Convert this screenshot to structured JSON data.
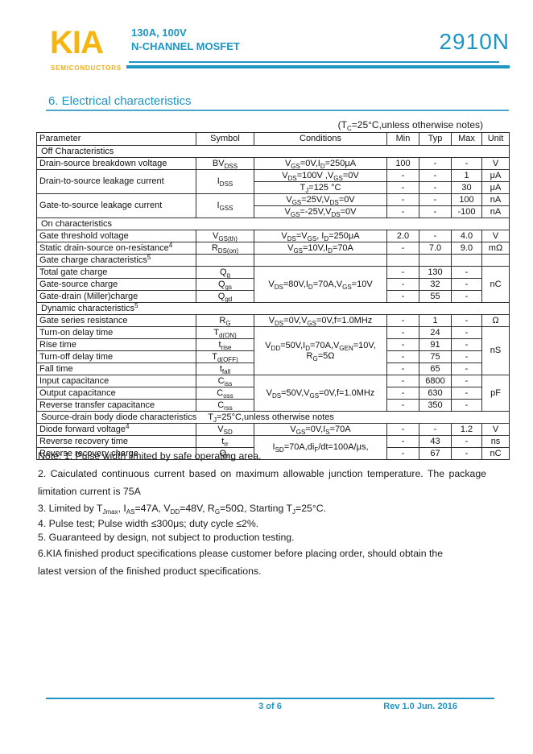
{
  "header": {
    "logo_text": "KIA",
    "logo_sub": "SEMICONDUCTORS",
    "product_line1": "130A, 100V",
    "product_line2": "N-CHANNEL MOSFET",
    "part_number": "2910N",
    "accent_blue": "#1d96c5",
    "logo_yellow": "#f6b40e"
  },
  "section": {
    "title": "6.  Electrical characteristics",
    "condition_note": "(T~C~=25°C,unless otherwise notes)"
  },
  "table": {
    "headers": [
      "Parameter",
      "Symbol",
      "Conditions",
      "Min",
      "Typ",
      "Max",
      "Unit"
    ],
    "rows": [
      {
        "section": "Off Characteristics"
      },
      {
        "parameter": "Drain-source breakdown voltage",
        "symbol": "BV~DSS~",
        "conditions": "V~GS~=0V,I~D~=250μA",
        "min": "100",
        "typ": "-",
        "max": "-",
        "unit": "V"
      },
      {
        "parameter": "Drain-to-source leakage current",
        "symbol": "I~DSS~",
        "conditions": "V~DS~=100V ,V~GS~=0V",
        "min": "-",
        "typ": "-",
        "max": "1",
        "unit": "μA"
      },
      {
        "conditions": "T~J~=125 °C",
        "min": "-",
        "typ": "-",
        "max": "30",
        "unit": "μA"
      },
      {
        "parameter": "Gate-to-source leakage current",
        "symbol": "I~GSS~",
        "conditions": "V~GS~=25V,V~DS~=0V",
        "min": "-",
        "typ": "-",
        "max": "100",
        "unit": "nA"
      },
      {
        "conditions": "V~GS~=-25V,V~DS~=0V",
        "min": "-",
        "typ": "-",
        "max": "-100",
        "unit": "nA"
      },
      {
        "section": "On characteristics"
      },
      {
        "parameter": "Gate threshold voltage",
        "symbol": "V~GS(th)~",
        "conditions": "V~DS~=V~GS~, I~D~=250μA",
        "min": "2.0",
        "typ": "-",
        "max": "4.0",
        "unit": "V"
      },
      {
        "parameter": "Static drain-source on-resistance^4^",
        "symbol": "R~DS(on)~",
        "conditions": "V~GS~=10V,I~D~=70A",
        "min": "-",
        "typ": "7.0",
        "max": "9.0",
        "unit": "mΩ"
      },
      {
        "section": "Gate charge characteristics^5^"
      },
      {
        "parameter": "Total gate charge",
        "symbol": "Q~g~",
        "conditions": "V~DS~=80V,I~D~=70A,V~GS~=10V",
        "min": "-",
        "typ": "130",
        "max": "-",
        "unit": "nC"
      },
      {
        "parameter": "Gate-source charge",
        "symbol": "Q~gs~",
        "min": "-",
        "typ": "32",
        "max": "-"
      },
      {
        "parameter": "Gate-drain (Miller)charge",
        "symbol": "Q~gd~",
        "min": "-",
        "typ": "55",
        "max": "-"
      },
      {
        "section": "Dynamic characteristics^5^"
      },
      {
        "parameter": "Gate series resistance",
        "symbol": "R~G~",
        "conditions": "V~DS~=0V,V~GS~=0V,f=1.0MHz",
        "min": "-",
        "typ": "1",
        "max": "-",
        "unit": "Ω"
      },
      {
        "parameter": "Turn-on delay time",
        "symbol": "T~d(ON)~",
        "conditions_line1": "V~DD~=50V,I~D~=70A,V~GEN~=10V,",
        "conditions_line2": "R~G~=5Ω",
        "min": "-",
        "typ": "24",
        "max": "-",
        "unit": "nS"
      },
      {
        "parameter": "Rise time",
        "symbol": "t~rise~",
        "min": "-",
        "typ": "91",
        "max": "-"
      },
      {
        "parameter": "Turn-off delay time",
        "symbol": "T~d(OFF)~",
        "min": "-",
        "typ": "75",
        "max": "-"
      },
      {
        "parameter": "Fall time",
        "symbol": "t~fall~",
        "min": "-",
        "typ": "65",
        "max": "-"
      },
      {
        "parameter": "Input capacitance",
        "symbol": "C~iss~",
        "conditions": "V~DS~=50V,V~GS~=0V,f=1.0MHz",
        "min": "-",
        "typ": "6800",
        "max": "-",
        "unit": "pF"
      },
      {
        "parameter": "Output capacitance",
        "symbol": "C~oss~",
        "min": "-",
        "typ": "630",
        "max": "-"
      },
      {
        "parameter": "Reverse transfer capacitance",
        "symbol": "C~rss~",
        "min": "-",
        "typ": "350",
        "max": "-"
      },
      {
        "section": "Source-drain body diode characteristics",
        "section_note": "T~J~=25°C,unless otherwise notes"
      },
      {
        "parameter": "Diode forward voltage^4^",
        "symbol": "V~SD~",
        "conditions": "V~GS~=0V,I~S~=70A",
        "min": "-",
        "typ": "-",
        "max": "1.2",
        "unit": "V"
      },
      {
        "parameter": "Reverse recovery time",
        "symbol": "t~rr~",
        "conditions": "I~SD~=70A,di~F~/dt=100A/μs,",
        "min": "-",
        "typ": "43",
        "max": "-",
        "unit": "ns"
      },
      {
        "parameter": "Reverse recovery charge",
        "symbol": "Q~rr~",
        "min": "-",
        "typ": "67",
        "max": "-",
        "unit": "nC"
      }
    ]
  },
  "notes": {
    "n1": "Note: 1. Pulse width limited by safe operating area.",
    "n2": "2. Caiculated continuous current based on maximum allowable junction temperature. The package limitation current is 75A",
    "n3": "3. Limited by T~Jmax~, I~AS~=47A, V~DD~=48V, R~G~=50Ω, Starting T~J~=25°C.",
    "n4": "4. Pulse test; Pulse width ≤300μs; duty cycle ≤2%.",
    "n5": "5. Guaranteed by design, not subject to production testing.",
    "n6": "6.KIA finished product specifications please customer before placing order, should obtain the latest version of the finished product specifications."
  },
  "footer": {
    "page_label": "3 of 6",
    "rev_label": "Rev 1.0 Jun. 2016"
  }
}
